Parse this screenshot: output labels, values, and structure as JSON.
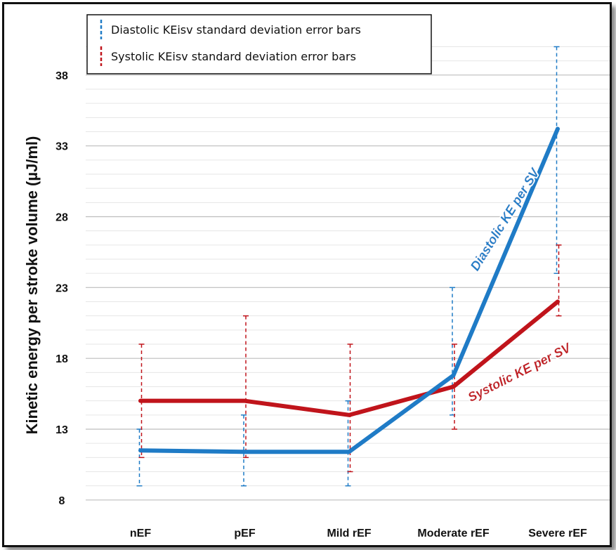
{
  "chart_data": {
    "type": "line",
    "ylabel": "Kinetic energy per stroke volume (µJ/ml)",
    "xlabel": "",
    "categories": [
      "nEF",
      "pEF",
      "Mild rEF",
      "Moderate rEF",
      "Severe rEF"
    ],
    "ylim": [
      7,
      40
    ],
    "yticks": [
      "8",
      "13",
      "18",
      "23",
      "28",
      "33",
      "38"
    ],
    "ytick_values": [
      8,
      13,
      18,
      23,
      28,
      33,
      38
    ],
    "minor_grid": true,
    "legend_position": "top-left",
    "legend": [
      "Diastolic KEisv standard deviation error bars",
      "Systolic KEisv standard deviation error bars"
    ],
    "series": [
      {
        "name": "Diastolic KE per SV",
        "color": "#1f7bc6",
        "values": [
          11.5,
          11.4,
          11.4,
          16.8,
          34.2
        ],
        "err_low": [
          9,
          9,
          9,
          14,
          24
        ],
        "err_high": [
          13,
          14,
          15,
          23,
          40
        ]
      },
      {
        "name": "Systolic KE per SV",
        "color": "#c0141b",
        "values": [
          15,
          15,
          14,
          16,
          22
        ],
        "err_low": [
          11,
          11,
          10,
          13,
          21
        ],
        "err_high": [
          19,
          21,
          19,
          19,
          26
        ]
      }
    ]
  }
}
